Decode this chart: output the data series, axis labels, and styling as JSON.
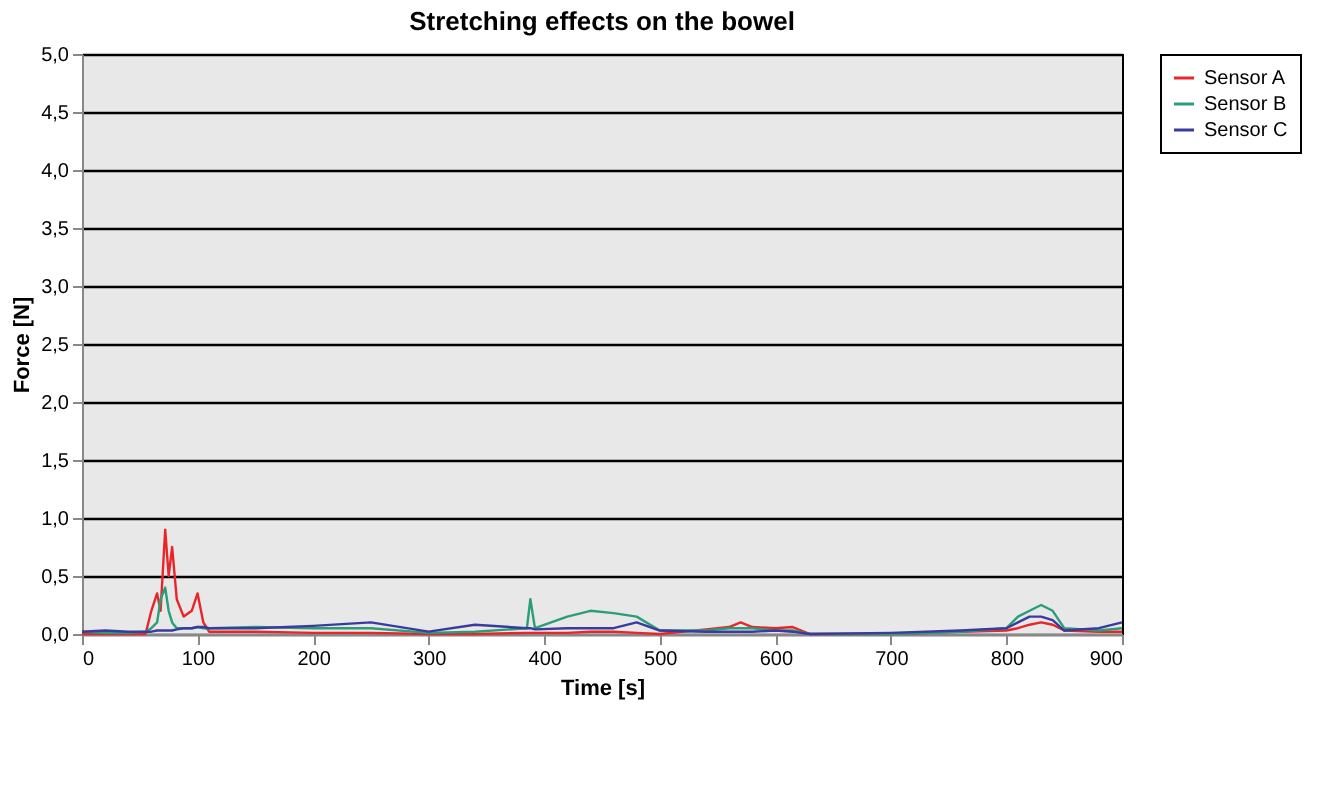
{
  "chart_data": {
    "type": "line",
    "title": "Stretching effects on the bowel",
    "xlabel": "Time [s]",
    "ylabel": "Force [N]",
    "x": [
      0,
      20,
      40,
      55,
      60,
      65,
      68,
      72,
      75,
      78,
      82,
      88,
      95,
      100,
      105,
      110,
      150,
      200,
      250,
      300,
      340,
      385,
      388,
      392,
      420,
      440,
      460,
      480,
      500,
      540,
      560,
      570,
      580,
      600,
      615,
      630,
      700,
      760,
      800,
      810,
      820,
      830,
      840,
      850,
      880,
      900
    ],
    "series": [
      {
        "name": "Sensor A",
        "color": "#e8262a",
        "values": [
          0,
          0,
          0,
          0,
          0.2,
          0.35,
          0.2,
          0.9,
          0.5,
          0.75,
          0.3,
          0.15,
          0.2,
          0.35,
          0.1,
          0.02,
          0.02,
          0.01,
          0.01,
          0,
          0,
          0.01,
          0.01,
          0.01,
          0.01,
          0.02,
          0.02,
          0.01,
          0,
          0.04,
          0.06,
          0.1,
          0.06,
          0.05,
          0.06,
          0,
          0,
          0.02,
          0.03,
          0.05,
          0.08,
          0.1,
          0.08,
          0.03,
          0.02,
          0.02
        ]
      },
      {
        "name": "Sensor B",
        "color": "#2a9e78",
        "values": [
          0.02,
          0.01,
          0.01,
          0.02,
          0.05,
          0.1,
          0.3,
          0.4,
          0.2,
          0.1,
          0.05,
          0.05,
          0.05,
          0.06,
          0.05,
          0.05,
          0.06,
          0.05,
          0.05,
          0.01,
          0.02,
          0.05,
          0.3,
          0.05,
          0.15,
          0.2,
          0.18,
          0.15,
          0.03,
          0.03,
          0.05,
          0.05,
          0.05,
          0.03,
          0.03,
          0,
          0,
          0.02,
          0.05,
          0.15,
          0.2,
          0.25,
          0.2,
          0.05,
          0.03,
          0.05
        ]
      },
      {
        "name": "Sensor C",
        "color": "#3a3aa0",
        "values": [
          0.02,
          0.03,
          0.02,
          0.02,
          0.02,
          0.03,
          0.03,
          0.03,
          0.03,
          0.03,
          0.04,
          0.05,
          0.05,
          0.06,
          0.06,
          0.05,
          0.05,
          0.07,
          0.1,
          0.02,
          0.08,
          0.05,
          0.05,
          0.04,
          0.05,
          0.05,
          0.05,
          0.1,
          0.03,
          0.02,
          0.02,
          0.02,
          0.02,
          0.03,
          0.02,
          0,
          0.01,
          0.03,
          0.05,
          0.1,
          0.15,
          0.15,
          0.12,
          0.03,
          0.05,
          0.1
        ]
      }
    ],
    "xlim": [
      0,
      900
    ],
    "xticks": [
      0,
      100,
      200,
      300,
      400,
      500,
      600,
      700,
      800,
      900
    ],
    "ylim": [
      0,
      5
    ],
    "yticks": [
      {
        "value": 0,
        "label": "0,0"
      },
      {
        "value": 0.5,
        "label": "0,5"
      },
      {
        "value": 1,
        "label": "1,0"
      },
      {
        "value": 1.5,
        "label": "1,5"
      },
      {
        "value": 2,
        "label": "2,0"
      },
      {
        "value": 2.5,
        "label": "2,5"
      },
      {
        "value": 3,
        "label": "3,0"
      },
      {
        "value": 3.5,
        "label": "3,5"
      },
      {
        "value": 4,
        "label": "4,0"
      },
      {
        "value": 4.5,
        "label": "4,5"
      },
      {
        "value": 5,
        "label": "5,0"
      }
    ],
    "grid": "y",
    "legend": "right",
    "marker": "none",
    "line_style": "solid"
  }
}
